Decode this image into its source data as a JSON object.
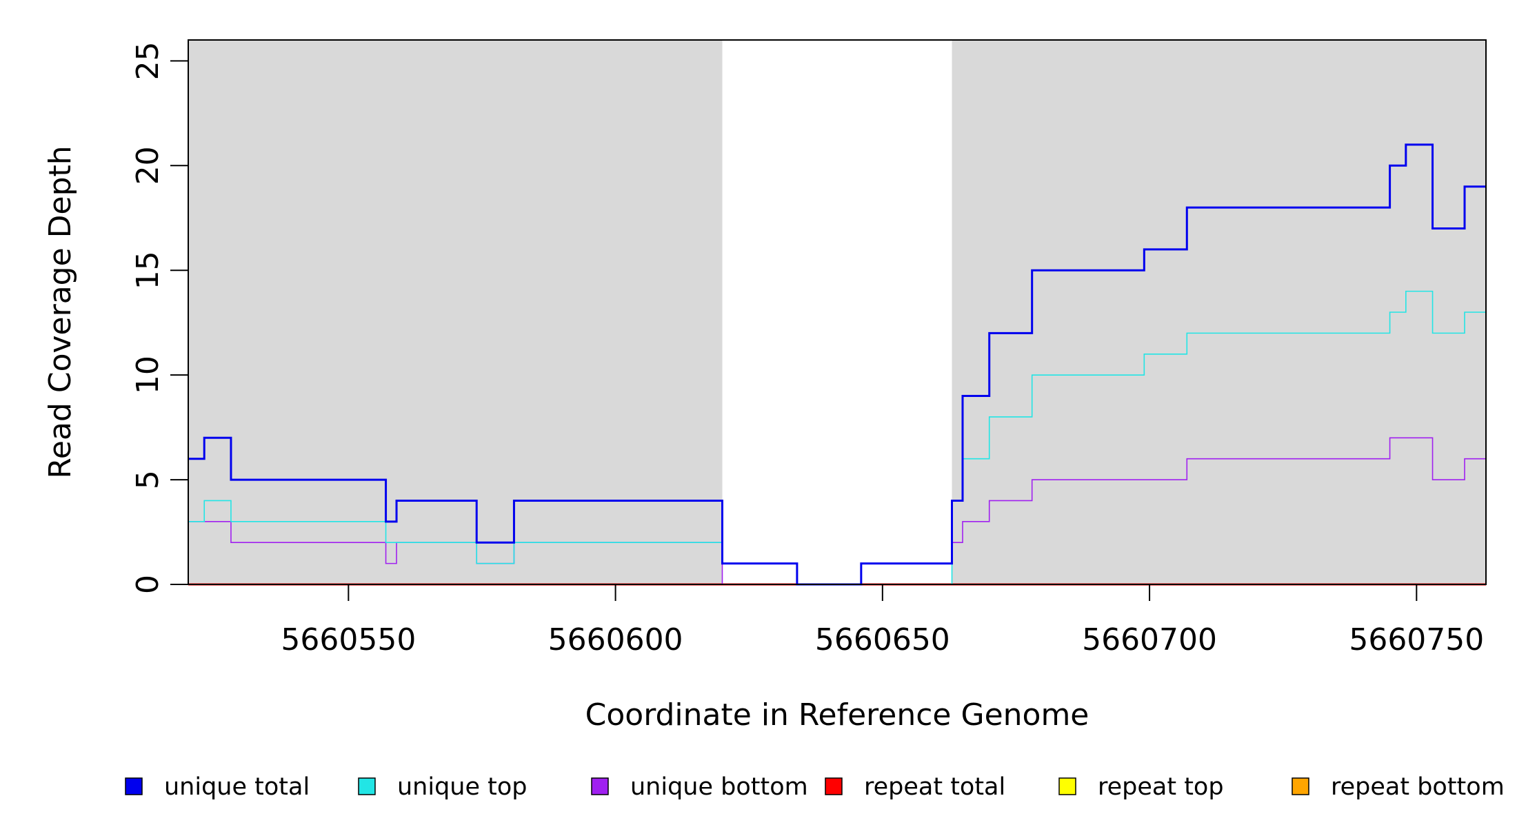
{
  "chart_data": {
    "type": "line",
    "step": true,
    "title": "",
    "xlabel": "Coordinate in Reference Genome",
    "ylabel": "Read Coverage Depth",
    "xlim": [
      5660520,
      5660763
    ],
    "ylim": [
      0,
      26
    ],
    "xticks": [
      5660550,
      5660600,
      5660650,
      5660700,
      5660750
    ],
    "yticks": [
      0,
      5,
      10,
      15,
      20,
      25
    ],
    "shaded_regions": [
      [
        5660520,
        5660620
      ],
      [
        5660663,
        5660763
      ]
    ],
    "shade_color": "#d9d9d9",
    "legend_position": "bottom",
    "series": [
      {
        "name": "unique total",
        "color": "#0000ee",
        "x": [
          5660520,
          5660523,
          5660528,
          5660549,
          5660557,
          5660559,
          5660574,
          5660581,
          5660620,
          5660634,
          5660646,
          5660663,
          5660665,
          5660670,
          5660678,
          5660699,
          5660707,
          5660745,
          5660748,
          5660753,
          5660759
        ],
        "y": [
          6,
          7,
          5,
          5,
          3,
          4,
          2,
          4,
          1,
          0,
          1,
          4,
          9,
          12,
          15,
          16,
          18,
          20,
          21,
          17,
          19
        ]
      },
      {
        "name": "unique top",
        "color": "#22e5e5",
        "x": [
          5660520,
          5660523,
          5660528,
          5660557,
          5660559,
          5660574,
          5660581,
          5660620,
          5660634,
          5660646,
          5660663,
          5660665,
          5660670,
          5660678,
          5660699,
          5660707,
          5660745,
          5660748,
          5660753,
          5660759
        ],
        "y": [
          3,
          4,
          3,
          2,
          2,
          1,
          2,
          1,
          0,
          0,
          4,
          6,
          8,
          10,
          11,
          12,
          13,
          14,
          12,
          13
        ]
      },
      {
        "name": "unique bottom",
        "color": "#a020f0",
        "x": [
          5660520,
          5660528,
          5660557,
          5660559,
          5660574,
          5660581,
          5660620,
          5660634,
          5660646,
          5660663,
          5660665,
          5660670,
          5660678,
          5660707,
          5660745,
          5660753,
          5660759
        ],
        "y": [
          3,
          2,
          1,
          2,
          1,
          2,
          0,
          0,
          1,
          2,
          3,
          4,
          5,
          6,
          7,
          5,
          6
        ]
      },
      {
        "name": "repeat total",
        "color": "#ff0000",
        "x": [
          5660520
        ],
        "y": [
          0
        ]
      },
      {
        "name": "repeat top",
        "color": "#ffff00",
        "x": [
          5660520
        ],
        "y": [
          0
        ]
      },
      {
        "name": "repeat bottom",
        "color": "#ffa500",
        "x": [
          5660520
        ],
        "y": [
          0
        ]
      }
    ]
  }
}
